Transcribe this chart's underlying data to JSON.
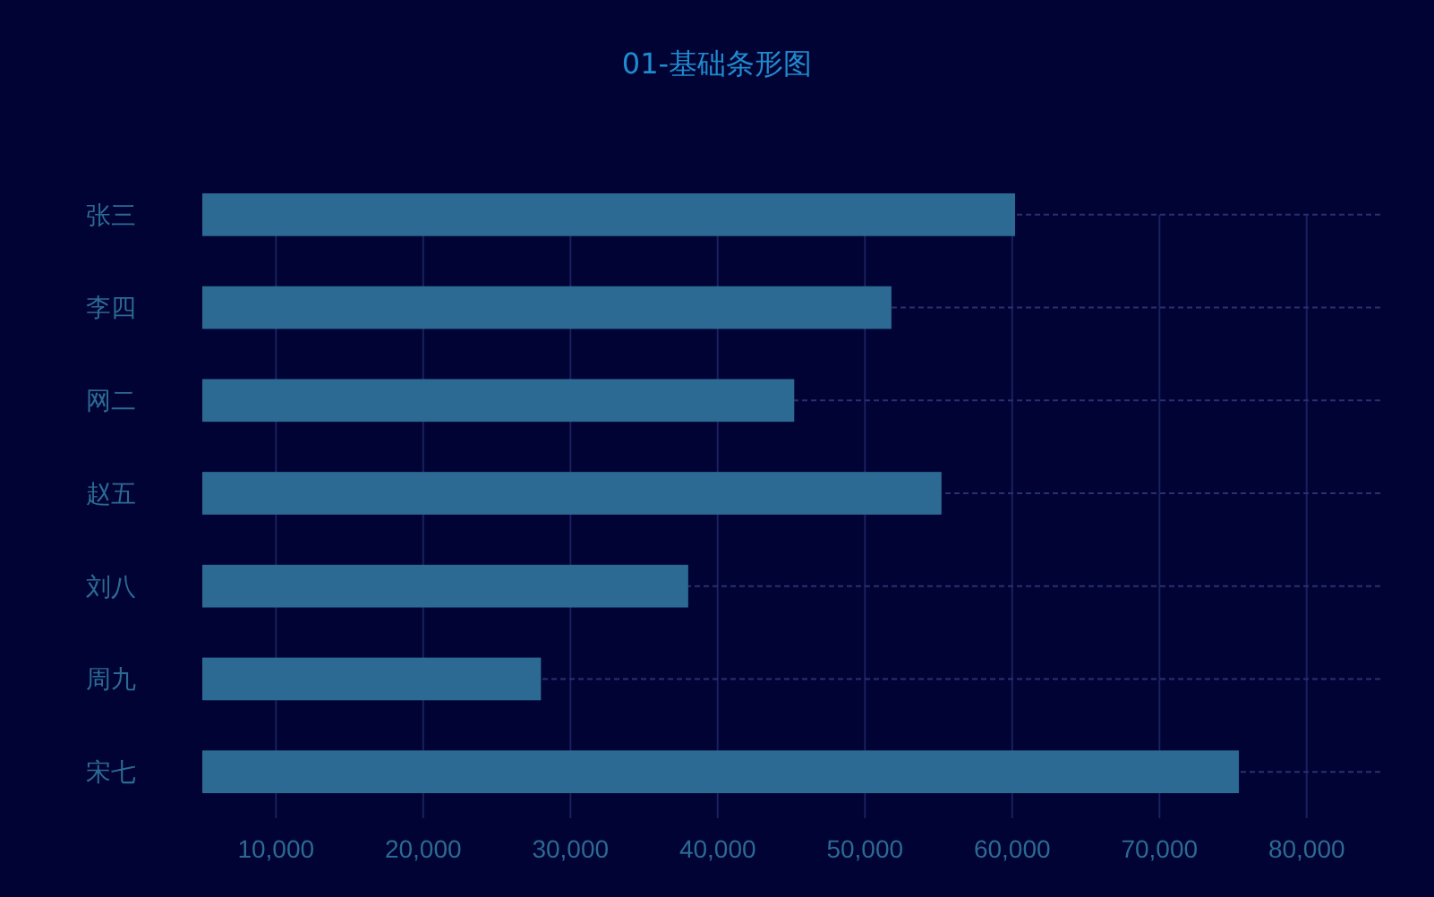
{
  "chart_data": {
    "type": "bar",
    "orientation": "horizontal",
    "title": "01-基础条形图",
    "categories": [
      "张三",
      "李四",
      "网二",
      "赵五",
      "刘八",
      "周九",
      "宋七"
    ],
    "values": [
      60200,
      51800,
      45200,
      55200,
      38000,
      28000,
      75400
    ],
    "color": "#2c6a94",
    "xlim": [
      5000,
      85000
    ],
    "xticks": [
      {
        "value": 10000,
        "label": "10,000"
      },
      {
        "value": 20000,
        "label": "20,000"
      },
      {
        "value": 30000,
        "label": "30,000"
      },
      {
        "value": 40000,
        "label": "40,000"
      },
      {
        "value": 50000,
        "label": "50,000"
      },
      {
        "value": 60000,
        "label": "60,000"
      },
      {
        "value": 70000,
        "label": "70,000"
      },
      {
        "value": 80000,
        "label": "80,000"
      }
    ],
    "grid": true
  }
}
